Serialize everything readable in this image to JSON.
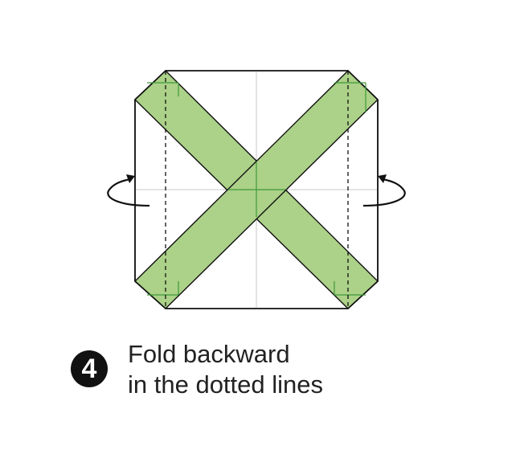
{
  "step": {
    "number": "4",
    "line1": "Fold backward",
    "line2": "in the dotted lines"
  },
  "colors": {
    "paper": "#ffffff",
    "outline": "#111111",
    "band_fill": "#acd188",
    "band_crease": "#3d9a3a",
    "center_crease": "#c8c8c8",
    "badge": "#111111"
  },
  "icons": {
    "left_arrow": "curved-arrow-icon",
    "right_arrow": "curved-arrow-icon"
  }
}
